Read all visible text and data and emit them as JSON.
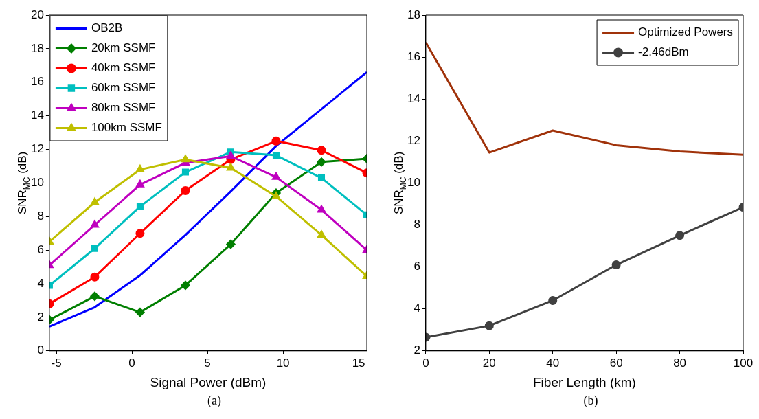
{
  "chart_data": [
    {
      "type": "line",
      "xlabel": "Signal Power (dBm)",
      "ylabel": "SNR$_{MC}$ (dB)",
      "annotations": [
        "(a)"
      ],
      "legend": "top left",
      "grid": false,
      "x": [
        -5.46,
        -2.46,
        0.54,
        3.54,
        6.54,
        9.54,
        12.54,
        15.54
      ],
      "xlim": [
        -5.46,
        15.54
      ],
      "xticks": [
        -5,
        0,
        5,
        10,
        15
      ],
      "ylim": [
        0,
        20
      ],
      "yticks": [
        0,
        2,
        4,
        6,
        8,
        10,
        12,
        14,
        16,
        18,
        20
      ],
      "series": [
        {
          "name": "OB2B",
          "color": "#0000ff",
          "marker": "none",
          "values": [
            1.45,
            2.6,
            4.5,
            6.9,
            9.5,
            12.2,
            14.4,
            16.6
          ]
        },
        {
          "name": "20km SSMF",
          "color": "#007f00",
          "marker": "diamond",
          "values": [
            1.85,
            3.25,
            2.3,
            3.9,
            6.35,
            9.4,
            11.25,
            11.45
          ]
        },
        {
          "name": "40km SSMF",
          "color": "#ff0000",
          "marker": "circle",
          "values": [
            2.8,
            4.4,
            7.0,
            9.55,
            11.4,
            12.5,
            11.95,
            10.6
          ]
        },
        {
          "name": "60km SSMF",
          "color": "#00bfbf",
          "marker": "square",
          "values": [
            3.9,
            6.1,
            8.6,
            10.65,
            11.85,
            11.65,
            10.3,
            8.1
          ]
        },
        {
          "name": "80km SSMF",
          "color": "#bf00bf",
          "marker": "triangle",
          "values": [
            5.1,
            7.5,
            9.9,
            11.2,
            11.6,
            10.35,
            8.4,
            6.0
          ]
        },
        {
          "name": "100km SSMF",
          "color": "#bfbf00",
          "marker": "triangle",
          "values": [
            6.5,
            8.85,
            10.8,
            11.4,
            10.9,
            9.2,
            6.9,
            4.45
          ]
        }
      ]
    },
    {
      "type": "line",
      "xlabel": "Fiber Length (km)",
      "ylabel": "SNR$_{MC}$ (dB)",
      "annotations": [
        "(b)"
      ],
      "legend": "top right",
      "grid": false,
      "x": [
        0,
        20,
        40,
        60,
        80,
        100
      ],
      "xlim": [
        0,
        100
      ],
      "xticks": [
        0,
        20,
        40,
        60,
        80,
        100
      ],
      "ylim": [
        2,
        18
      ],
      "yticks": [
        2,
        4,
        6,
        8,
        10,
        12,
        14,
        16,
        18
      ],
      "series": [
        {
          "name": "Optimized Powers",
          "color": "#a0320a",
          "marker": "none",
          "values": [
            16.7,
            11.45,
            12.5,
            11.8,
            11.5,
            11.35
          ]
        },
        {
          "name": "-2.46dBm",
          "color": "#404040",
          "marker": "circle",
          "values": [
            2.65,
            3.2,
            4.4,
            6.1,
            7.5,
            8.85
          ]
        }
      ]
    }
  ]
}
